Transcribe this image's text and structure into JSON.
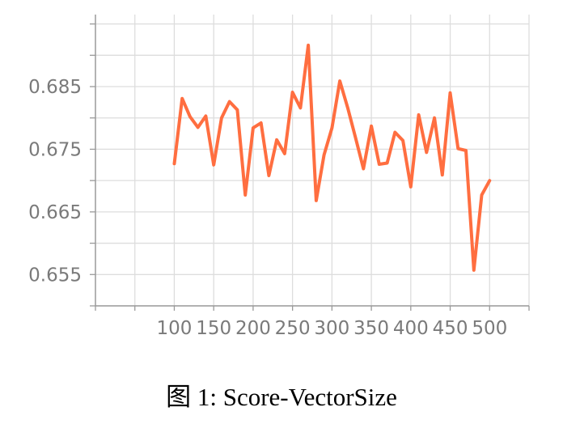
{
  "caption": "图 1: Score-VectorSize",
  "chart_data": {
    "type": "line",
    "title": "",
    "xlabel": "",
    "ylabel": "",
    "x": [
      100,
      110,
      120,
      130,
      140,
      150,
      160,
      170,
      180,
      190,
      200,
      210,
      220,
      230,
      240,
      250,
      260,
      270,
      280,
      290,
      300,
      310,
      320,
      330,
      340,
      350,
      360,
      370,
      380,
      390,
      400,
      410,
      420,
      430,
      440,
      450,
      460,
      470,
      480,
      490,
      500
    ],
    "series": [
      {
        "values": [
          0.6727,
          0.6831,
          0.6802,
          0.6785,
          0.6803,
          0.6725,
          0.68,
          0.6826,
          0.6813,
          0.6677,
          0.6784,
          0.6792,
          0.6708,
          0.6765,
          0.6743,
          0.6841,
          0.6816,
          0.6916,
          0.6668,
          0.6741,
          0.6784,
          0.6859,
          0.6816,
          0.6768,
          0.6719,
          0.6787,
          0.6726,
          0.6728,
          0.6777,
          0.6764,
          0.669,
          0.6805,
          0.6745,
          0.68,
          0.6709,
          0.684,
          0.6751,
          0.6748,
          0.6557,
          0.6677,
          0.67
        ],
        "color": "#ff6e40"
      }
    ],
    "xticks": [
      100,
      150,
      200,
      250,
      300,
      350,
      400,
      450,
      500
    ],
    "xtick_labels": [
      "100",
      "150",
      "200",
      "250",
      "300",
      "350",
      "400",
      "450",
      "500"
    ],
    "yticks": [
      0.655,
      0.665,
      0.675,
      0.685
    ],
    "ytick_labels": [
      "0.655",
      "0.665",
      "0.675",
      "0.685"
    ],
    "xlim": [
      0,
      550
    ],
    "ylim": [
      0.65,
      0.6965
    ],
    "grid": true,
    "legend": "none"
  }
}
